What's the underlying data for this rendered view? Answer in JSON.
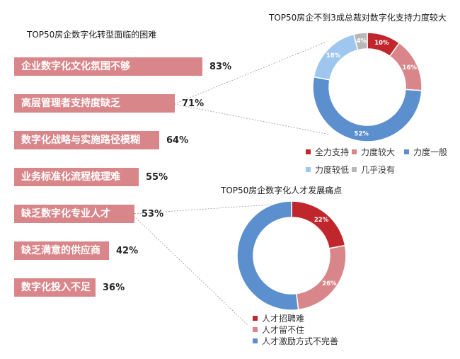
{
  "chart_data": [
    {
      "type": "bar",
      "title": "TOP50房企数字化转型面临的困难",
      "categories": [
        "企业数字化文化氛围不够",
        "高层管理者支持度缺乏",
        "数字化战略与实施路径模糊",
        "业务标准化流程梳理难",
        "缺乏数字化专业人才",
        "缺乏满意的供应商",
        "数字化投入不足"
      ],
      "values": [
        83,
        71,
        64,
        55,
        53,
        42,
        36
      ],
      "value_labels": [
        "83%",
        "71%",
        "64%",
        "55%",
        "53%",
        "42%",
        "36%"
      ],
      "orientation": "horizontal",
      "color": "#d9868a"
    },
    {
      "type": "pie",
      "title": "TOP50房企不到3成总裁对数字化支持力度较大",
      "categories": [
        "全力支持",
        "力度较大",
        "力度一般",
        "力度较低",
        "几乎没有"
      ],
      "values": [
        10,
        16,
        52,
        18,
        4
      ],
      "value_labels": [
        "10%",
        "16%",
        "52%",
        "18%",
        "4%"
      ],
      "colors": [
        "#c0272d",
        "#d9868a",
        "#5b8fce",
        "#9fc6ef",
        "#b8b8b8"
      ],
      "legend": "bottom"
    },
    {
      "type": "pie",
      "title": "TOP50房企数字化人才发展痛点",
      "categories": [
        "人才招聘难",
        "人才留不住",
        "人才激励方式不完善"
      ],
      "values": [
        22,
        26,
        52
      ],
      "value_labels": [
        "22%",
        "26%",
        ""
      ],
      "colors": [
        "#c0272d",
        "#d9868a",
        "#5b8fce"
      ],
      "legend": "bottom"
    }
  ]
}
